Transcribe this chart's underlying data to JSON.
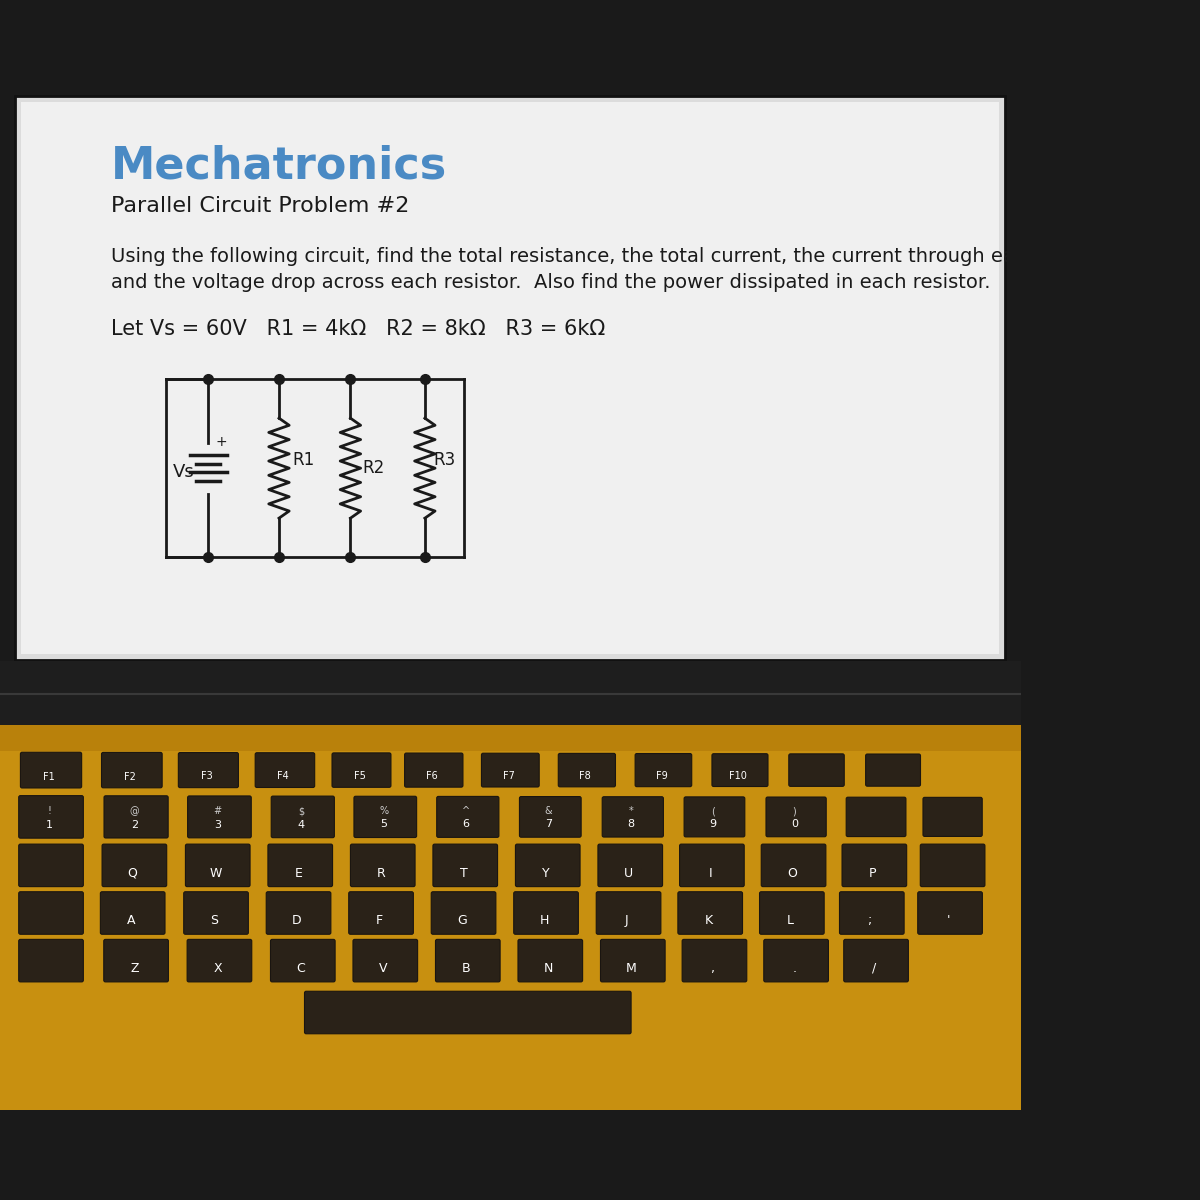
{
  "title": "Mechatronics",
  "subtitle": "Parallel Circuit Problem #2",
  "desc1": "Using the following circuit, find the total resistance, the total current, the current through each resistor",
  "desc2": "and the voltage drop across each resistor.  Also find the power dissipated in each resistor.",
  "params": "Let Vs = 60V   R1 = 4kΩ   R2 = 8kΩ   R3 = 6kΩ",
  "screen_bg": "#dcdcdc",
  "page_bg": "#ececec",
  "title_color": "#4a8ac4",
  "text_color": "#1a1a1a",
  "circuit_color": "#1a1a1a",
  "bezel_dark": "#1a1a1a",
  "bezel_strip": "#2a2a2a",
  "keyboard_bg": "#c8980a",
  "keyboard_bg2": "#b07808",
  "key_color": "#2a2218",
  "key_edge": "#1a1510"
}
